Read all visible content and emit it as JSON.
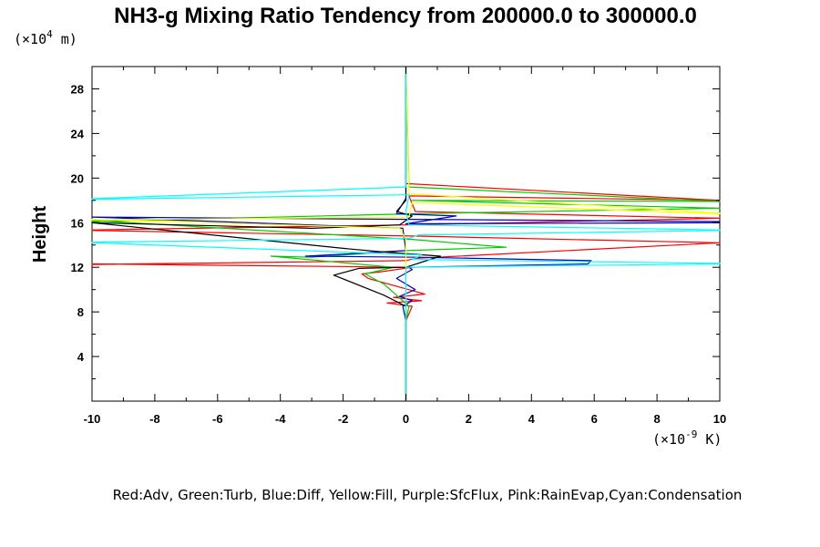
{
  "chart_data": {
    "type": "line",
    "title": "NH3-g Mixing Ratio Tendency from 200000.0 to 300000.0",
    "ylabel": "Height",
    "y_unit": "(×10",
    "y_unit_exp": "4",
    "y_unit_suffix": " m)",
    "x_unit": "(×10",
    "x_unit_exp": "-9",
    "x_unit_suffix": " K)",
    "legend_text": "Red:Adv, Green:Turb, Blue:Diff, Yellow:Fill, Purple:SfcFlux, Pink:RainEvap,Cyan:Condensation",
    "xlim": [
      -10,
      10
    ],
    "ylim": [
      0,
      30
    ],
    "x_ticks": [
      "-10",
      "-8",
      "-6",
      "-4",
      "-2",
      "0",
      "2",
      "4",
      "6",
      "8",
      "10"
    ],
    "y_ticks": [
      "4",
      "8",
      "12",
      "16",
      "20",
      "24",
      "28"
    ],
    "series": [
      {
        "color": "#ff0000",
        "points": [
          [
            0,
            0
          ],
          [
            0,
            7.2
          ],
          [
            0.2,
            8.5
          ],
          [
            -0.6,
            8.8
          ],
          [
            0.5,
            9.0
          ],
          [
            -0.4,
            9.3
          ],
          [
            0.6,
            9.6
          ],
          [
            -1.2,
            11.0
          ],
          [
            -1.4,
            11.4
          ],
          [
            -0.8,
            11.6
          ],
          [
            0.2,
            12.0
          ],
          [
            -10,
            12.3
          ],
          [
            -10,
            12.25
          ],
          [
            0,
            12.6
          ],
          [
            0.3,
            12.8
          ],
          [
            10,
            14.2
          ],
          [
            0.2,
            14.8
          ],
          [
            -10,
            15.3
          ],
          [
            -10,
            15.35
          ],
          [
            0,
            15.8
          ],
          [
            10,
            16.4
          ],
          [
            0.3,
            17.0
          ],
          [
            0.1,
            18.4
          ],
          [
            10,
            18.0
          ],
          [
            0,
            19.5
          ],
          [
            0,
            30
          ]
        ]
      },
      {
        "color": "#00cc00",
        "points": [
          [
            0,
            0
          ],
          [
            0,
            7.2
          ],
          [
            0.1,
            8.5
          ],
          [
            -0.3,
            9.5
          ],
          [
            -0.7,
            10.5
          ],
          [
            -1.3,
            11.4
          ],
          [
            -0.4,
            12.0
          ],
          [
            -4.3,
            13.0
          ],
          [
            -3.0,
            12.9
          ],
          [
            0,
            13.5
          ],
          [
            3.2,
            13.8
          ],
          [
            0.2,
            14.5
          ],
          [
            -10,
            16.2
          ],
          [
            -10,
            16.1
          ],
          [
            0.2,
            16.8
          ],
          [
            10,
            17.3
          ],
          [
            0.2,
            18.0
          ],
          [
            10,
            17.9
          ],
          [
            0.1,
            19.2
          ],
          [
            0,
            30
          ]
        ]
      },
      {
        "color": "#0000cc",
        "points": [
          [
            0,
            0
          ],
          [
            0,
            7.2
          ],
          [
            -0.1,
            8.5
          ],
          [
            0.2,
            9.0
          ],
          [
            -0.2,
            9.4
          ],
          [
            0.3,
            10.0
          ],
          [
            -0.3,
            11.0
          ],
          [
            0.2,
            11.8
          ],
          [
            0.1,
            12.0
          ],
          [
            5.8,
            12.3
          ],
          [
            5.9,
            12.6
          ],
          [
            0.4,
            12.9
          ],
          [
            -3.2,
            13.0
          ],
          [
            0,
            13.5
          ],
          [
            -0.1,
            15.5
          ],
          [
            -10,
            16.5
          ],
          [
            10,
            16.1
          ],
          [
            10,
            16.0
          ],
          [
            0,
            15.9
          ],
          [
            1.6,
            16.6
          ],
          [
            -0.3,
            16.8
          ],
          [
            0,
            18.2
          ],
          [
            0,
            30
          ]
        ]
      },
      {
        "color": "#000000",
        "points": [
          [
            0,
            0
          ],
          [
            0,
            7.2
          ],
          [
            0,
            8.5
          ],
          [
            -0.7,
            9.5
          ],
          [
            -2.3,
            11.3
          ],
          [
            -1.5,
            11.9
          ],
          [
            0,
            12.0
          ],
          [
            1.1,
            13.0
          ],
          [
            -0.8,
            13.4
          ],
          [
            -2.0,
            13.7
          ],
          [
            -10,
            16.0
          ],
          [
            -3.0,
            15.5
          ],
          [
            -0.2,
            15.8
          ],
          [
            0.2,
            16.6
          ],
          [
            -0.3,
            17.0
          ],
          [
            0,
            18.0
          ],
          [
            0,
            30
          ]
        ]
      },
      {
        "color": "#ffff00",
        "points": [
          [
            0,
            0
          ],
          [
            0,
            14.5
          ],
          [
            -0.2,
            15.5
          ],
          [
            -10,
            16.3
          ],
          [
            -10,
            16.25
          ],
          [
            0.1,
            16.5
          ],
          [
            0.2,
            17.8
          ],
          [
            10,
            16.8
          ],
          [
            10,
            16.85
          ],
          [
            0.1,
            18.6
          ],
          [
            0,
            30
          ]
        ]
      },
      {
        "color": "#00ffff",
        "points": [
          [
            0,
            0
          ],
          [
            0,
            12.0
          ],
          [
            10,
            12.3
          ],
          [
            10,
            12.35
          ],
          [
            0.2,
            12.7
          ],
          [
            0.5,
            13.1
          ],
          [
            -10,
            14.2
          ],
          [
            -10,
            14.25
          ],
          [
            0.1,
            14.6
          ],
          [
            0.4,
            14.9
          ],
          [
            10,
            15.3
          ],
          [
            10,
            15.35
          ],
          [
            0.1,
            15.8
          ],
          [
            0,
            17.0
          ],
          [
            0.1,
            18.5
          ],
          [
            -10,
            18.1
          ],
          [
            -10,
            18.15
          ],
          [
            0,
            19.2
          ],
          [
            0,
            30
          ]
        ]
      }
    ]
  }
}
